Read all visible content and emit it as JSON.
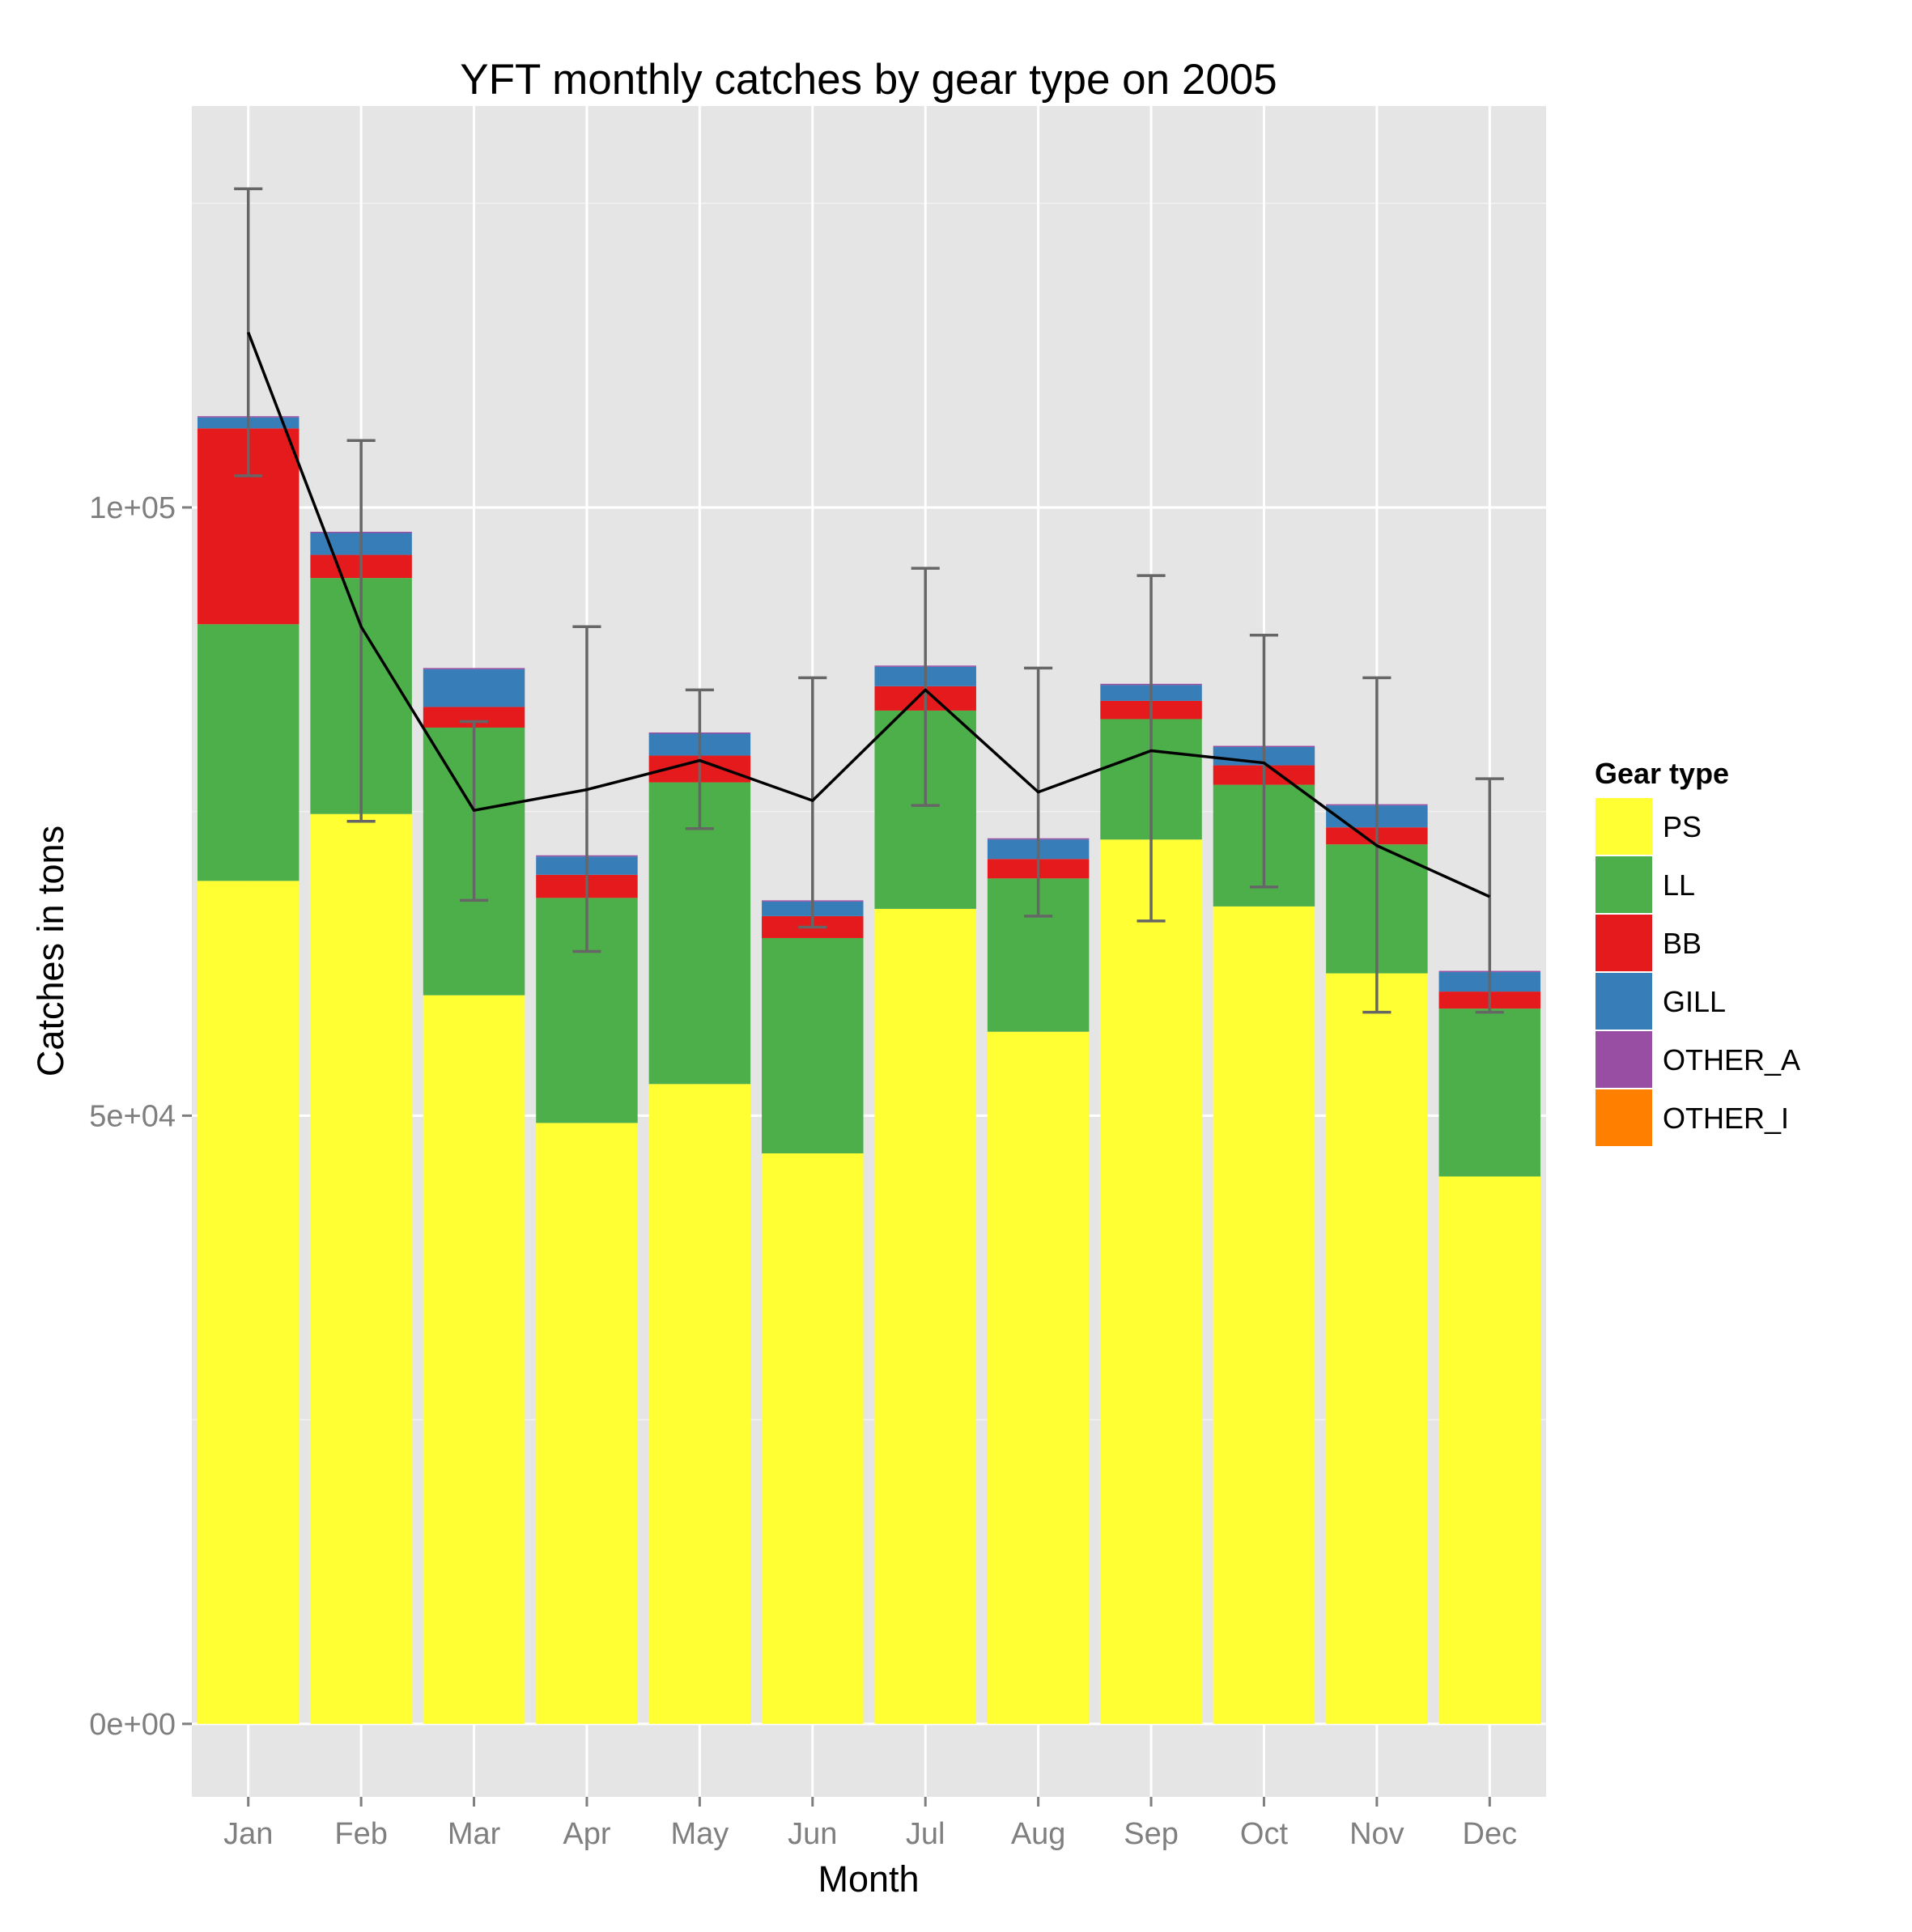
{
  "chart_data": {
    "type": "bar",
    "stacked": true,
    "title": "YFT monthly catches by gear type on 2005",
    "xlabel": "Month",
    "ylabel": "Catches in tons",
    "categories": [
      "Jan",
      "Feb",
      "Mar",
      "Apr",
      "May",
      "Jun",
      "Jul",
      "Aug",
      "Sep",
      "Oct",
      "Nov",
      "Dec"
    ],
    "ylim": [
      -6000,
      133000
    ],
    "yticks": [
      0,
      50000,
      100000
    ],
    "ytick_labels": [
      "0e+00",
      "5e+04",
      "1e+05"
    ],
    "grid": true,
    "legend": {
      "title": "Gear type",
      "position": "right"
    },
    "series": [
      {
        "name": "PS",
        "color": "#FFFF33",
        "values": [
          69300,
          74800,
          59900,
          49400,
          52600,
          46900,
          67000,
          56900,
          72700,
          67200,
          61700,
          45000
        ]
      },
      {
        "name": "LL",
        "color": "#4DAF4A",
        "values": [
          21100,
          19400,
          22000,
          18500,
          24800,
          17700,
          16300,
          12600,
          9900,
          10000,
          10600,
          13800
        ]
      },
      {
        "name": "BB",
        "color": "#E41A1C",
        "values": [
          16100,
          1900,
          1700,
          1900,
          2200,
          1800,
          2000,
          1600,
          1500,
          1600,
          1400,
          1400
        ]
      },
      {
        "name": "GILL",
        "color": "#377EB8",
        "values": [
          900,
          1800,
          3100,
          1500,
          1800,
          1200,
          1600,
          1600,
          1300,
          1500,
          1800,
          1600
        ]
      },
      {
        "name": "OTHER_A",
        "color": "#984EA3",
        "values": [
          100,
          100,
          100,
          100,
          100,
          100,
          100,
          100,
          100,
          100,
          100,
          100
        ]
      },
      {
        "name": "OTHER_I",
        "color": "#FF7F00",
        "values": [
          0,
          0,
          0,
          0,
          0,
          0,
          0,
          0,
          0,
          0,
          0,
          0
        ]
      }
    ],
    "line": {
      "color": "#000000",
      "values": [
        114400,
        90200,
        75100,
        76800,
        79200,
        75900,
        85000,
        76600,
        80000,
        79000,
        72200,
        68000
      ]
    },
    "error_bars": {
      "color": "#666666",
      "lower": [
        102600,
        74200,
        67700,
        63500,
        73600,
        65500,
        75500,
        66400,
        66000,
        68800,
        58500,
        58500
      ],
      "upper": [
        126200,
        105500,
        82400,
        90200,
        85000,
        86000,
        95000,
        86800,
        94400,
        89500,
        86000,
        77700
      ]
    }
  }
}
